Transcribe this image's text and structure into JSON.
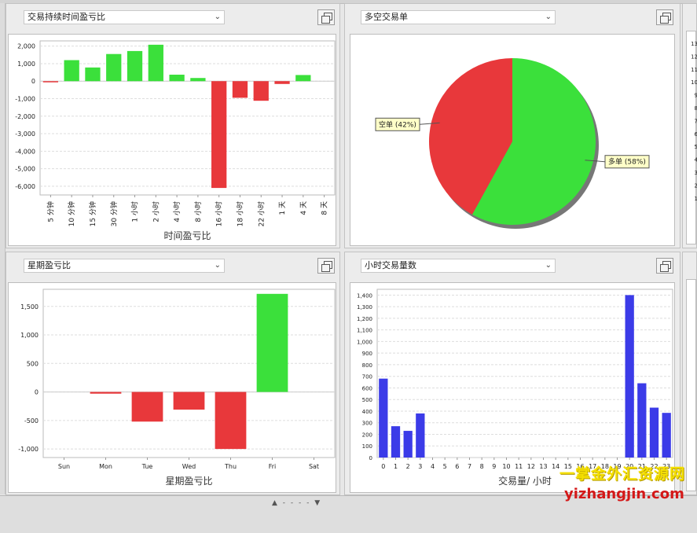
{
  "panels": {
    "duration": {
      "select_label": "交易持续时间盈亏比"
    },
    "longshort": {
      "select_label": "多空交易单"
    },
    "weekday": {
      "select_label": "星期盈亏比"
    },
    "hourly": {
      "select_label": "小时交易量数"
    }
  },
  "right_strip_ticks": [
    "13",
    "12",
    "11",
    "10",
    "9",
    "8",
    "7",
    "6",
    "5",
    "4",
    "3",
    "2",
    "1"
  ],
  "watermark": {
    "line1": "一掌金外汇资源网",
    "line2": "yizhangjin.com"
  },
  "colors": {
    "positive": "#3be03b",
    "negative": "#e8383b",
    "volume": "#3b3be8",
    "grid": "#dddddd"
  },
  "chart_data": [
    {
      "id": "duration",
      "type": "bar",
      "xlabel": "时间盈亏比",
      "ylabel": "",
      "ylim": [
        -6500,
        2300
      ],
      "yticks": [
        2000,
        1000,
        0,
        -1000,
        -2000,
        -3000,
        -4000,
        -5000,
        -6000
      ],
      "ytick_labels": [
        "2,000",
        "1,000",
        "0",
        "-1,000",
        "-2,000",
        "-3,000",
        "-4,000",
        "-5,000",
        "-6,000"
      ],
      "categories": [
        "5 分钟",
        "10 分钟",
        "15 分钟",
        "30 分钟",
        "1 小时",
        "2 小时",
        "4 小时",
        "8 小时",
        "16 小时",
        "18 小时",
        "22 小时",
        "1 天",
        "4 天",
        "8 天"
      ],
      "values": [
        -20,
        1200,
        780,
        1550,
        1720,
        2080,
        370,
        180,
        -6100,
        -950,
        -1120,
        -160,
        350,
        0
      ],
      "grid": true
    },
    {
      "id": "longshort",
      "type": "pie",
      "slices": [
        {
          "label": "多单",
          "pct_label": "(58%)",
          "value": 58
        },
        {
          "label": "空单",
          "pct_label": "(42%)",
          "value": 42
        }
      ]
    },
    {
      "id": "weekday",
      "type": "bar",
      "xlabel": "星期盈亏比",
      "ylabel": "",
      "ylim": [
        -1150,
        1800
      ],
      "yticks": [
        1500,
        1000,
        500,
        0,
        -500,
        -1000
      ],
      "ytick_labels": [
        "1,500",
        "1,000",
        "500",
        "0",
        "-500",
        "-1,000"
      ],
      "categories": [
        "Sun",
        "Mon",
        "Tue",
        "Wed",
        "Thu",
        "Fri",
        "Sat"
      ],
      "values": [
        0,
        -30,
        -520,
        -310,
        -1000,
        1720,
        0
      ],
      "grid": true
    },
    {
      "id": "hourly",
      "type": "bar",
      "xlabel": "交易量/ 小时",
      "ylabel": "",
      "ylim": [
        0,
        1450
      ],
      "yticks": [
        1400,
        1300,
        1200,
        1100,
        1000,
        900,
        800,
        700,
        600,
        500,
        400,
        300,
        200,
        100,
        0
      ],
      "ytick_labels": [
        "1,400",
        "1,300",
        "1,200",
        "1,100",
        "1,000",
        "900",
        "800",
        "700",
        "600",
        "500",
        "400",
        "300",
        "200",
        "100",
        "0"
      ],
      "categories": [
        "0",
        "1",
        "2",
        "3",
        "4",
        "5",
        "6",
        "7",
        "8",
        "9",
        "10",
        "11",
        "12",
        "13",
        "14",
        "15",
        "16",
        "17",
        "18",
        "19",
        "20",
        "21",
        "22",
        "23"
      ],
      "values": [
        680,
        270,
        230,
        380,
        0,
        0,
        0,
        0,
        0,
        0,
        0,
        0,
        0,
        0,
        0,
        0,
        0,
        0,
        0,
        0,
        1400,
        640,
        430,
        385
      ],
      "grid": true
    }
  ]
}
